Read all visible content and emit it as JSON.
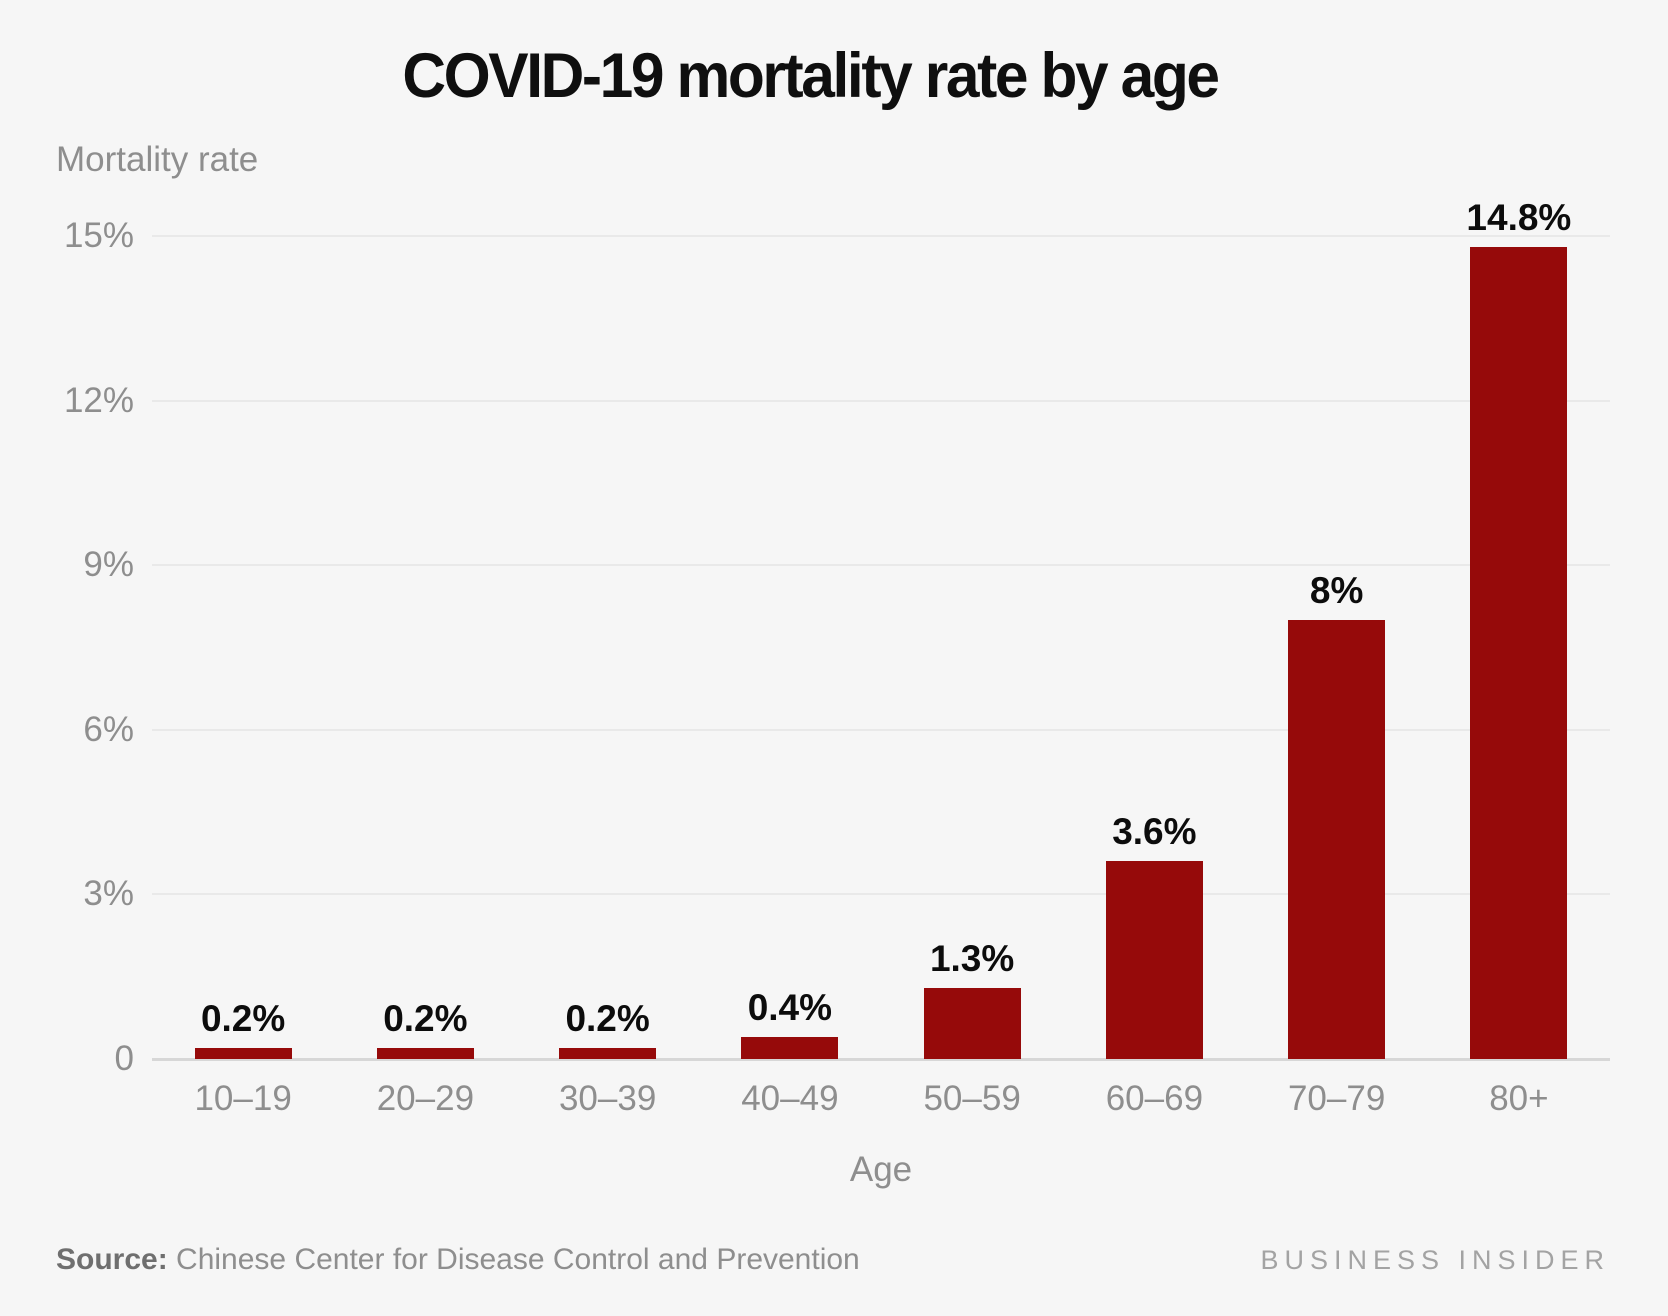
{
  "title": "COVID-19 mortality rate by age",
  "y_axis": {
    "label": "Mortality rate",
    "ticks": [
      {
        "label": "0",
        "value": 0
      },
      {
        "label": "3%",
        "value": 3
      },
      {
        "label": "6%",
        "value": 6
      },
      {
        "label": "9%",
        "value": 9
      },
      {
        "label": "12%",
        "value": 12
      },
      {
        "label": "15%",
        "value": 15
      }
    ]
  },
  "x_axis": {
    "label": "Age"
  },
  "chart_data": {
    "type": "bar",
    "title": "COVID-19 mortality rate by age",
    "xlabel": "Age",
    "ylabel": "Mortality rate",
    "categories": [
      "10–19",
      "20–29",
      "30–39",
      "40–49",
      "50–59",
      "60–69",
      "70–79",
      "80+"
    ],
    "values": [
      0.2,
      0.2,
      0.2,
      0.4,
      1.3,
      3.6,
      8,
      14.8
    ],
    "value_labels": [
      "0.2%",
      "0.2%",
      "0.2%",
      "0.4%",
      "1.3%",
      "3.6%",
      "8%",
      "14.8%"
    ],
    "ylim": [
      0,
      15
    ],
    "yticks": [
      0,
      3,
      6,
      9,
      12,
      15
    ],
    "grid": true,
    "legend": false,
    "bar_color": "#960a0a"
  },
  "footer": {
    "source_label": "Source:",
    "source_text": " Chinese Center for Disease Control and Prevention",
    "branding": "BUSINESS INSIDER"
  },
  "colors": {
    "background": "#f6f6f6",
    "bar": "#960a0a",
    "gridline": "#e9e9e9",
    "baseline": "#d7d7d7",
    "title_text": "#0f0f0f",
    "axis_text": "#8e8e8e",
    "value_text": "#0c0c0c",
    "branding_text": "#a3a3a3"
  }
}
